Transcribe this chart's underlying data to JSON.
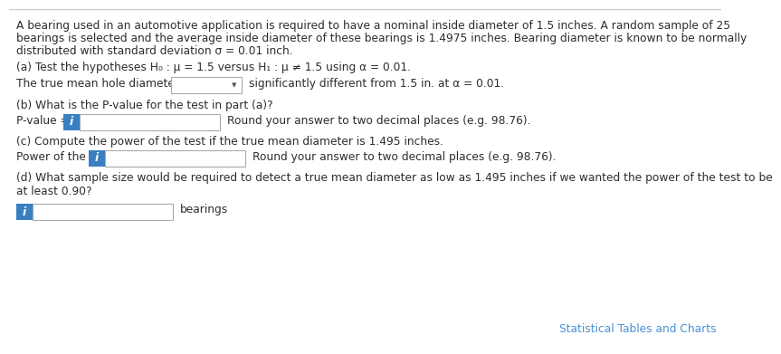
{
  "bg_color": "#ffffff",
  "border_color": "#cccccc",
  "text_color": "#2d2d2d",
  "blue_color": "#3a7fc1",
  "link_color": "#4a90d9",
  "paragraph1": "A bearing used in an automotive application is required to have a nominal inside diameter of 1.5 inches. A random sample of 25",
  "paragraph1b": "bearings is selected and the average inside diameter of these bearings is 1.4975 inches. Bearing diameter is known to be normally",
  "paragraph1c": "distributed with standard deviation σ = 0.01 inch.",
  "part_a_label": "(a) Test the hypotheses H₀ : μ = 1.5 versus H₁ : μ ≠ 1.5 using α = 0.01.",
  "part_a_answer_prefix": "The true mean hole diameter",
  "part_a_answer_suffix": "significantly different from 1.5 in. at α = 0.01.",
  "part_b_label": "(b) What is the P-value for the test in part (a)?",
  "part_b_answer_prefix": "P-value = ",
  "part_b_answer_suffix": "  Round your answer to two decimal places (e.g. 98.76).",
  "part_c_label": "(c) Compute the power of the test if the true mean diameter is 1.495 inches.",
  "part_c_answer_prefix": "Power of the test = ",
  "part_c_answer_suffix": "  Round your answer to two decimal places (e.g. 98.76).",
  "part_d_label": "(d) What sample size would be required to detect a true mean diameter as low as 1.495 inches if we wanted the power of the test to be",
  "part_d_label2": "at least 0.90?",
  "part_d_answer_suffix": "bearings",
  "footer": "Statistical Tables and Charts",
  "font_size": 8.8,
  "font_size_footer": 8.8
}
